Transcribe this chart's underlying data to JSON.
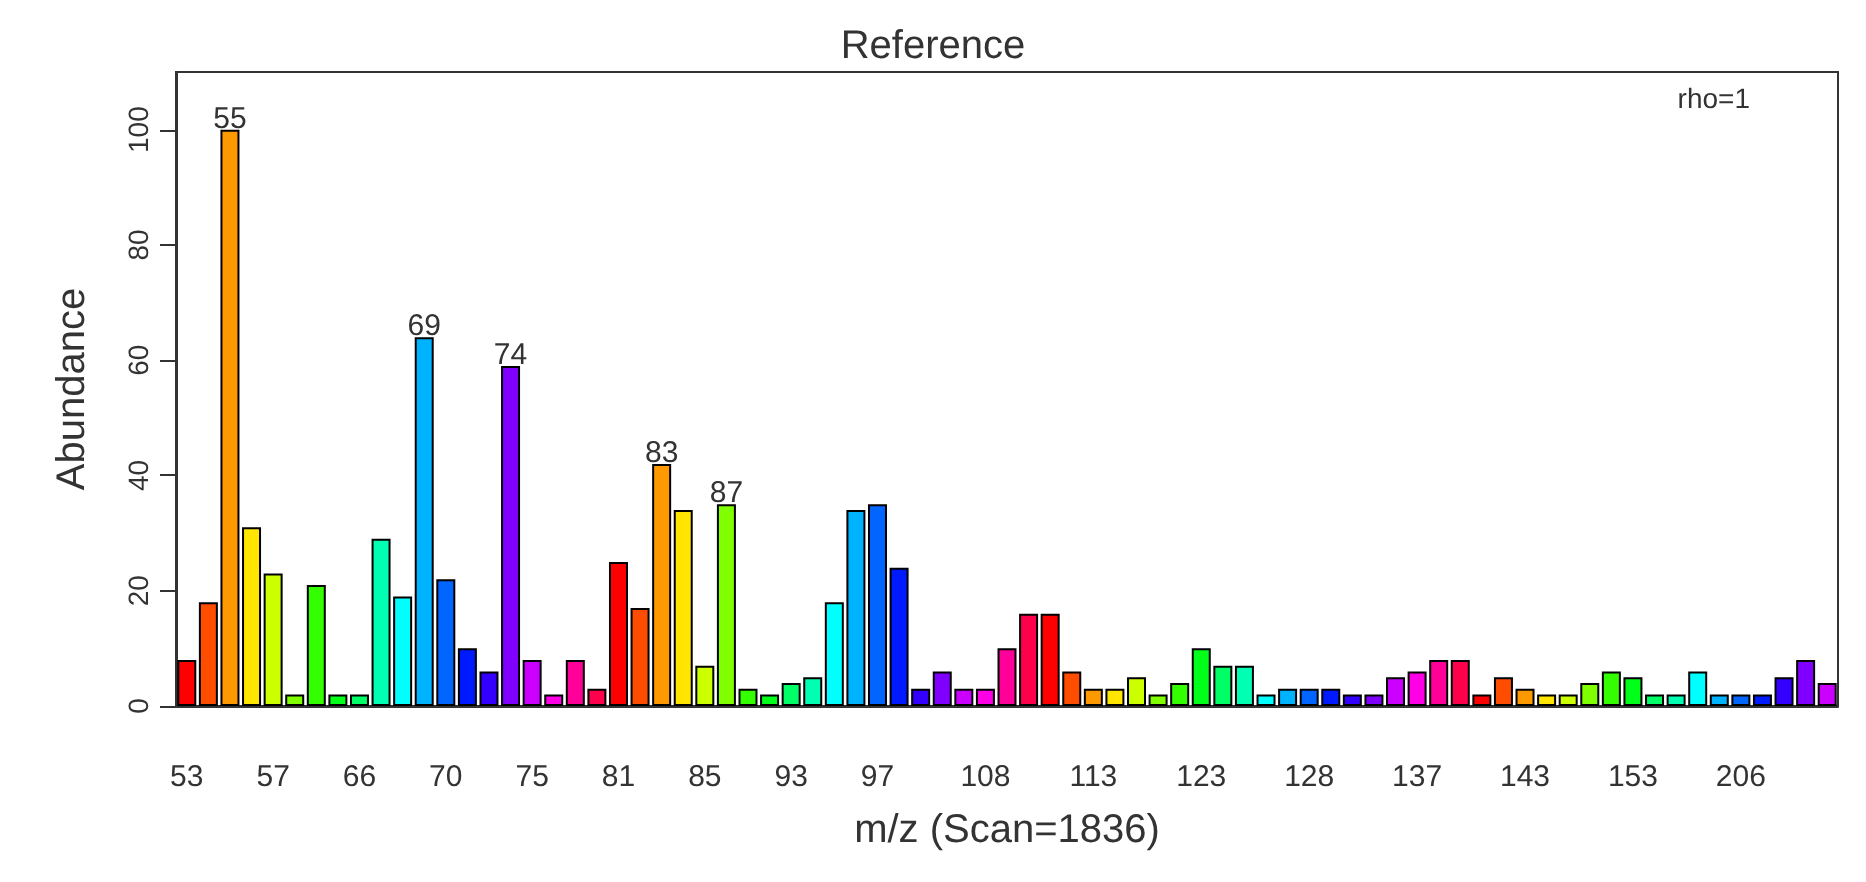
{
  "chart_data": {
    "type": "bar",
    "title": "Reference",
    "xlabel": "m/z (Scan=1836)",
    "ylabel": "Abundance",
    "annotations": [
      "rho=1",
      {
        "text": "55",
        "y": 100
      },
      {
        "text": "69",
        "y": 64
      },
      {
        "text": "74",
        "y": 59
      },
      {
        "text": "83",
        "y": 42
      },
      {
        "text": "87",
        "y": 35
      }
    ],
    "categories": [
      "53",
      null,
      null,
      null,
      "57",
      null,
      null,
      null,
      "66",
      null,
      null,
      null,
      "70",
      null,
      null,
      null,
      "75",
      null,
      null,
      null,
      "81",
      null,
      null,
      null,
      "85",
      null,
      null,
      null,
      "93",
      null,
      null,
      null,
      "97",
      null,
      null,
      null,
      null,
      "108",
      null,
      null,
      null,
      null,
      "113",
      null,
      null,
      null,
      null,
      "123",
      null,
      null,
      null,
      null,
      "128",
      null,
      null,
      null,
      null,
      "137",
      null,
      null,
      null,
      null,
      "143",
      null,
      null,
      null,
      null,
      "153",
      null,
      null,
      null,
      null,
      "206",
      null,
      null,
      null,
      null
    ],
    "values": [
      8,
      18,
      100,
      31,
      23,
      2,
      21,
      2,
      2,
      29,
      19,
      64,
      22,
      10,
      6,
      59,
      8,
      2,
      8,
      3,
      25,
      17,
      42,
      34,
      7,
      35,
      3,
      2,
      4,
      5,
      18,
      34,
      35,
      24,
      3,
      6,
      3,
      3,
      10,
      16,
      16,
      6,
      3,
      3,
      5,
      2,
      4,
      10,
      7,
      7,
      2,
      3,
      3,
      3,
      2,
      2,
      5,
      6,
      8,
      8,
      2,
      5,
      3,
      2,
      2,
      4,
      6,
      5,
      2,
      2,
      6,
      2,
      2,
      2,
      5,
      8,
      4
    ],
    "colors": [
      "#ff0000",
      "#ff4d00",
      "#ff9900",
      "#ffe500",
      "#ccff00",
      "#80ff00",
      "#33ff00",
      "#00ff19",
      "#00ff66",
      "#00ffb2",
      "#00ffff",
      "#00b3ff",
      "#0066ff",
      "#001aff",
      "#3300ff",
      "#7f00ff",
      "#cc00ff",
      "#ff00e6",
      "#ff0099",
      "#ff004d",
      "#ff0000",
      "#ff4d00",
      "#ff9900",
      "#ffe500",
      "#ccff00",
      "#80ff00",
      "#33ff00",
      "#00ff19",
      "#00ff66",
      "#00ffb2",
      "#00ffff",
      "#00b3ff",
      "#0066ff",
      "#001aff",
      "#3300ff",
      "#7f00ff",
      "#cc00ff",
      "#ff00e6",
      "#ff0099",
      "#ff004d",
      "#ff0000",
      "#ff4d00",
      "#ff9900",
      "#ffe500",
      "#ccff00",
      "#80ff00",
      "#33ff00",
      "#00ff19",
      "#00ff66",
      "#00ffb2",
      "#00ffff",
      "#00b3ff",
      "#0066ff",
      "#001aff",
      "#3300ff",
      "#7f00ff",
      "#cc00ff",
      "#ff00e6",
      "#ff0099",
      "#ff004d",
      "#ff0000",
      "#ff4d00",
      "#ff9900",
      "#ffe500",
      "#ccff00",
      "#80ff00",
      "#33ff00",
      "#00ff19",
      "#00ff66",
      "#00ffb2",
      "#00ffff",
      "#00b3ff",
      "#0066ff",
      "#001aff",
      "#3300ff",
      "#7f00ff",
      "#cc00ff"
    ],
    "ylim": [
      0,
      110
    ],
    "yticks": [
      0,
      20,
      40,
      60,
      80,
      100
    ],
    "grid": false
  }
}
